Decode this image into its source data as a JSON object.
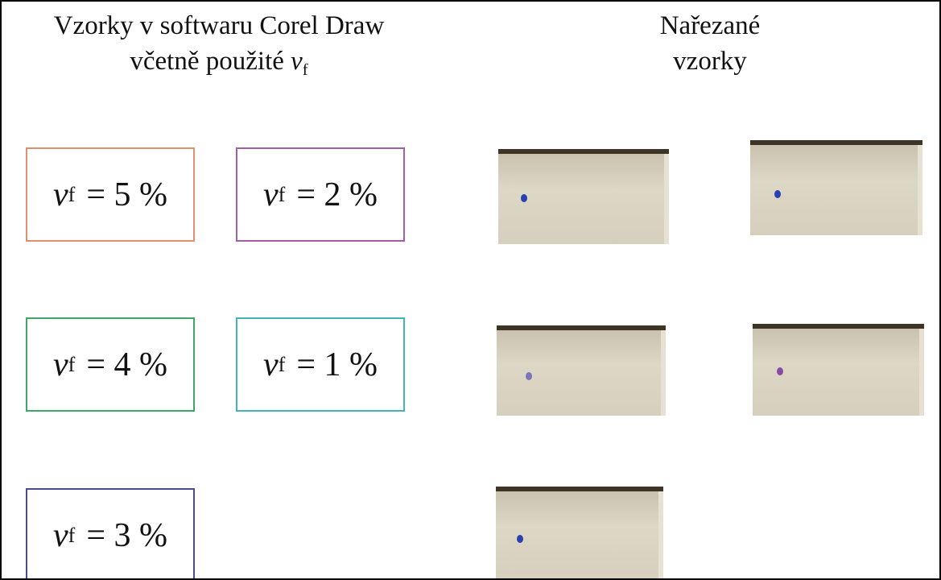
{
  "header": {
    "left": {
      "lines": [
        "Vzorky v softwaru Corel Draw",
        "včetně použité"
      ],
      "symbol": "v",
      "subscript": "f"
    },
    "right": {
      "lines": [
        "Nařezané",
        "vzorky"
      ]
    }
  },
  "boxes": [
    {
      "symbol": "v",
      "subscript": "f",
      "text": "= 5 %",
      "color": "#e0906e"
    },
    {
      "symbol": "v",
      "subscript": "f",
      "text": "= 2 %",
      "color": "#a060a8"
    },
    {
      "symbol": "v",
      "subscript": "f",
      "text": "= 4 %",
      "color": "#3ea868"
    },
    {
      "symbol": "v",
      "subscript": "f",
      "text": "= 1 %",
      "color": "#44b4b8"
    },
    {
      "symbol": "v",
      "subscript": "f",
      "text": "= 3 %",
      "color": "#4a4e88"
    }
  ]
}
